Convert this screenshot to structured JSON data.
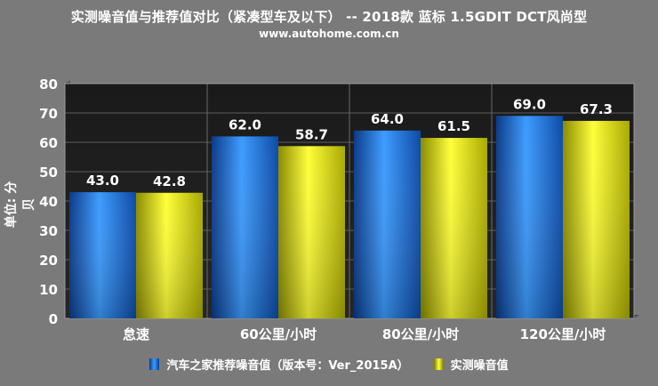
{
  "title": "实测噪音值与推荐值对比（紧凑型车及以下） -- 2018款 蓝标 1.5GDIT DCT风尚型",
  "subtitle": "www.autohome.com.cn",
  "chart_data": {
    "type": "bar",
    "ylabel": "单位: 分贝",
    "xlabel": "",
    "ylim": [
      0,
      80
    ],
    "yticks": [
      0,
      10,
      20,
      30,
      40,
      50,
      60,
      70,
      80
    ],
    "grid": true,
    "legend_position": "bottom",
    "categories": [
      "怠速",
      "60公里/小时",
      "80公里/小时",
      "120公里/小时"
    ],
    "series": [
      {
        "name": "汽车之家推荐噪音值（版本号：Ver_2015A）",
        "color": "#2f8cff",
        "values": [
          43.0,
          62.0,
          64.0,
          69.0
        ],
        "labels": [
          "43.0",
          "62.0",
          "64.0",
          "69.0"
        ]
      },
      {
        "name": "实测噪音值",
        "color": "#ffff33",
        "values": [
          42.8,
          58.7,
          61.5,
          67.3
        ],
        "labels": [
          "42.8",
          "58.7",
          "61.5",
          "67.3"
        ]
      }
    ]
  }
}
